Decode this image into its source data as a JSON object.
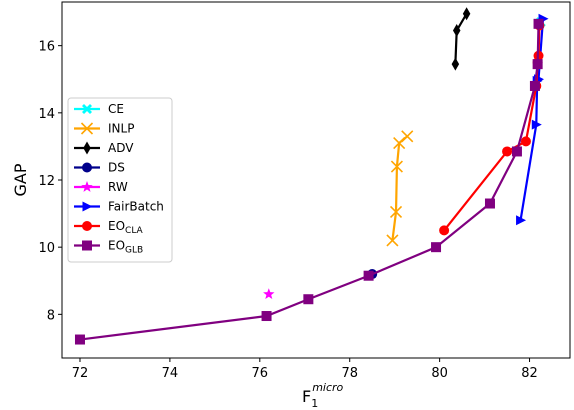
{
  "chart_data": {
    "type": "line",
    "xlabel": "F",
    "xlabel_sub": "1",
    "xlabel_sup": "micro",
    "ylabel": "GAP",
    "xlim": [
      71.6,
      82.9
    ],
    "ylim": [
      6.7,
      17.3
    ],
    "xticks": [
      72,
      74,
      76,
      78,
      80,
      82
    ],
    "yticks": [
      8,
      10,
      12,
      14,
      16
    ],
    "legend_position": "center-left",
    "series": [
      {
        "name": "CE",
        "color": "#00ffff",
        "marker": "X",
        "x": [
          82.25
        ],
        "y": [
          16.7
        ]
      },
      {
        "name": "INLP",
        "color": "#ffa500",
        "marker": "x",
        "x": [
          79.28,
          79.1,
          79.05,
          79.03,
          78.95
        ],
        "y": [
          13.3,
          13.1,
          12.4,
          11.05,
          10.2
        ]
      },
      {
        "name": "ADV",
        "color": "#000000",
        "marker": "d",
        "x": [
          80.35,
          80.38,
          80.6
        ],
        "y": [
          15.45,
          16.45,
          16.95
        ]
      },
      {
        "name": "DS",
        "color": "#00008b",
        "marker": "o",
        "x": [
          78.5
        ],
        "y": [
          9.2
        ]
      },
      {
        "name": "RW",
        "color": "#ff00ff",
        "marker": "*",
        "x": [
          76.2
        ],
        "y": [
          8.6
        ]
      },
      {
        "name": "FairBatch",
        "color": "#0000ff",
        "marker": ">",
        "x": [
          82.3,
          82.2,
          82.17,
          82.15,
          81.8
        ],
        "y": [
          16.8,
          15.0,
          14.95,
          13.65,
          10.8
        ]
      },
      {
        "name": "EO",
        "name_sub": "CLA",
        "color": "#ff0000",
        "marker": "o",
        "x": [
          82.22,
          82.2,
          82.18,
          82.15,
          81.92,
          81.5,
          80.1
        ],
        "y": [
          16.6,
          15.7,
          15.5,
          14.8,
          13.15,
          12.85,
          10.5
        ]
      },
      {
        "name": "EO",
        "name_sub": "GLB",
        "color": "#800080",
        "marker": "s",
        "x": [
          82.2,
          82.18,
          82.12,
          81.72,
          81.12,
          79.92,
          78.42,
          77.08,
          76.15,
          72.0
        ],
        "y": [
          16.65,
          15.45,
          14.8,
          12.85,
          11.3,
          10.0,
          9.15,
          8.45,
          7.95,
          7.25
        ]
      }
    ]
  }
}
